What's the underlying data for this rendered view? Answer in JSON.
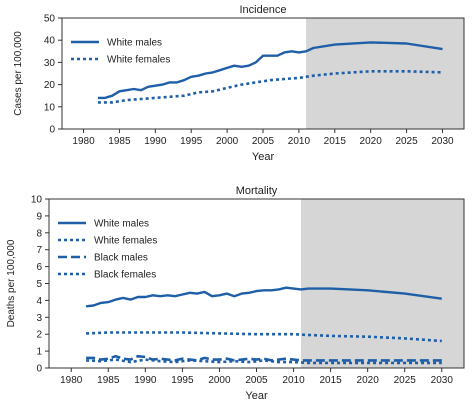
{
  "colors": {
    "line": "#1f5fa8",
    "shade": "#d6d6d6",
    "axis": "#333333"
  },
  "chart_data": [
    {
      "type": "line",
      "title": "Incidence",
      "xlabel": "Year",
      "ylabel": "Cases per 100,000",
      "xlim": [
        1977,
        2033
      ],
      "ylim": [
        0,
        50
      ],
      "xticks": [
        1980,
        1985,
        1990,
        1995,
        2000,
        2005,
        2010,
        2015,
        2020,
        2025,
        2030
      ],
      "yticks": [
        0,
        10,
        20,
        30,
        40,
        50
      ],
      "shaded_region": [
        2011,
        2033
      ],
      "legend_position": "top-left",
      "series": [
        {
          "name": "White males",
          "style": "solid",
          "x": [
            1982,
            1983,
            1984,
            1985,
            1986,
            1987,
            1988,
            1989,
            1990,
            1991,
            1992,
            1993,
            1994,
            1995,
            1996,
            1997,
            1998,
            1999,
            2000,
            2001,
            2002,
            2003,
            2004,
            2005,
            2006,
            2007,
            2008,
            2009,
            2010,
            2011,
            2012,
            2015,
            2020,
            2025,
            2030
          ],
          "y": [
            14,
            14,
            15,
            17,
            17.5,
            18,
            17.5,
            19,
            19.5,
            20,
            21,
            21,
            22,
            23.5,
            24,
            25,
            25.5,
            26.5,
            27.5,
            28.5,
            28,
            28.5,
            30,
            33,
            33,
            33,
            34.5,
            35,
            34.5,
            35,
            36.5,
            38,
            39,
            38.5,
            36
          ]
        },
        {
          "name": "White females",
          "style": "dotted",
          "x": [
            1982,
            1984,
            1986,
            1988,
            1990,
            1992,
            1994,
            1996,
            1998,
            2000,
            2002,
            2004,
            2006,
            2008,
            2010,
            2012,
            2015,
            2020,
            2025,
            2030
          ],
          "y": [
            12,
            12,
            13,
            13.5,
            14,
            14.5,
            15,
            16.5,
            17,
            18.5,
            20,
            21,
            22,
            22.5,
            23,
            24,
            25,
            26,
            26,
            25.5
          ]
        }
      ]
    },
    {
      "type": "line",
      "title": "Mortality",
      "xlabel": "Year",
      "ylabel": "Deaths per 100,000",
      "xlim": [
        1977,
        2033
      ],
      "ylim": [
        0,
        10
      ],
      "xticks": [
        1980,
        1985,
        1990,
        1995,
        2000,
        2005,
        2010,
        2015,
        2020,
        2025,
        2030
      ],
      "yticks": [
        0,
        1,
        2,
        3,
        4,
        5,
        6,
        7,
        8,
        9,
        10
      ],
      "shaded_region": [
        2011,
        2033
      ],
      "legend_position": "top-left",
      "series": [
        {
          "name": "White males",
          "style": "solid",
          "x": [
            1982,
            1983,
            1984,
            1985,
            1986,
            1987,
            1988,
            1989,
            1990,
            1991,
            1992,
            1993,
            1994,
            1995,
            1996,
            1997,
            1998,
            1999,
            2000,
            2001,
            2002,
            2003,
            2004,
            2005,
            2006,
            2007,
            2008,
            2009,
            2010,
            2011,
            2012,
            2015,
            2020,
            2025,
            2030
          ],
          "y": [
            3.65,
            3.7,
            3.85,
            3.9,
            4.05,
            4.15,
            4.05,
            4.2,
            4.2,
            4.3,
            4.25,
            4.3,
            4.25,
            4.35,
            4.45,
            4.4,
            4.5,
            4.25,
            4.3,
            4.4,
            4.25,
            4.4,
            4.45,
            4.55,
            4.6,
            4.6,
            4.65,
            4.75,
            4.7,
            4.65,
            4.7,
            4.7,
            4.6,
            4.4,
            4.1
          ]
        },
        {
          "name": "White females",
          "style": "dotted",
          "x": [
            1982,
            1985,
            1990,
            1995,
            2000,
            2005,
            2008,
            2010,
            2012,
            2015,
            2020,
            2025,
            2030
          ],
          "y": [
            2.05,
            2.1,
            2.1,
            2.1,
            2.05,
            2.0,
            2.0,
            2.0,
            1.95,
            1.9,
            1.85,
            1.75,
            1.6
          ]
        },
        {
          "name": "Black males",
          "style": "dashed",
          "x": [
            1982,
            1983,
            1984,
            1985,
            1986,
            1987,
            1988,
            1989,
            1990,
            1991,
            1992,
            1993,
            1994,
            1995,
            1996,
            1997,
            1998,
            1999,
            2000,
            2001,
            2002,
            2003,
            2004,
            2005,
            2006,
            2007,
            2008,
            2009,
            2010,
            2011,
            2015,
            2020,
            2025,
            2030
          ],
          "y": [
            0.6,
            0.6,
            0.5,
            0.55,
            0.7,
            0.55,
            0.5,
            0.7,
            0.65,
            0.5,
            0.55,
            0.5,
            0.45,
            0.55,
            0.5,
            0.45,
            0.6,
            0.5,
            0.5,
            0.55,
            0.45,
            0.5,
            0.55,
            0.5,
            0.55,
            0.45,
            0.5,
            0.55,
            0.5,
            0.45,
            0.45,
            0.45,
            0.45,
            0.45
          ]
        },
        {
          "name": "Black females",
          "style": "dotted",
          "x": [
            1982,
            1984,
            1986,
            1988,
            1990,
            1992,
            1994,
            1996,
            1998,
            2000,
            2002,
            2004,
            2006,
            2008,
            2010,
            2012,
            2015,
            2020,
            2025,
            2030
          ],
          "y": [
            0.45,
            0.4,
            0.5,
            0.35,
            0.5,
            0.4,
            0.35,
            0.45,
            0.4,
            0.35,
            0.4,
            0.35,
            0.45,
            0.35,
            0.35,
            0.3,
            0.3,
            0.3,
            0.3,
            0.3
          ]
        }
      ]
    }
  ]
}
